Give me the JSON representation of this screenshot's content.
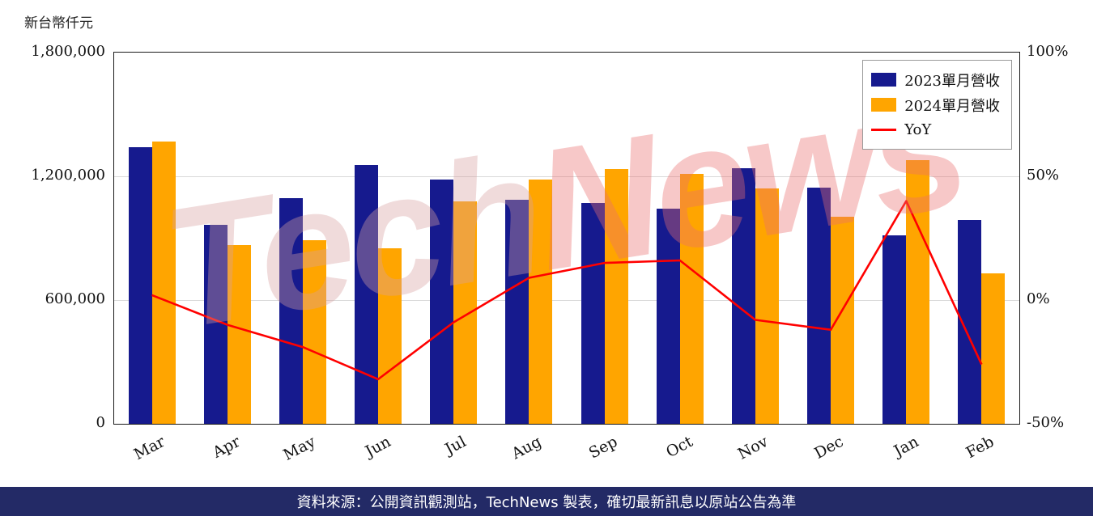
{
  "chart_data": {
    "type": "bar+line",
    "title": "",
    "categories": [
      "Mar",
      "Apr",
      "May",
      "Jun",
      "Jul",
      "Aug",
      "Sep",
      "Oct",
      "Nov",
      "Dec",
      "Jan",
      "Feb"
    ],
    "series": [
      {
        "name": "2023單月營收",
        "kind": "bar",
        "color": "#161a8e",
        "axis": "left",
        "values": [
          1340000,
          965000,
          1095000,
          1255000,
          1185000,
          1085000,
          1070000,
          1045000,
          1240000,
          1145000,
          915000,
          990000
        ]
      },
      {
        "name": "2024單月營收",
        "kind": "bar",
        "color": "#FFA500",
        "axis": "left",
        "values": [
          1370000,
          865000,
          890000,
          850000,
          1080000,
          1185000,
          1235000,
          1210000,
          1140000,
          1005000,
          1280000,
          730000
        ]
      },
      {
        "name": "YoY",
        "kind": "line",
        "color": "#FF0000",
        "axis": "right",
        "values": [
          2,
          -10,
          -19,
          -32,
          -9,
          9,
          15,
          16,
          -8,
          -12,
          40,
          -26
        ]
      }
    ],
    "left_axis": {
      "label": "新台幣仟元",
      "min": 0,
      "max": 1800000,
      "tick_values": [
        0,
        600000,
        1200000,
        1800000
      ],
      "tick_labels": [
        "0",
        "600,000",
        "1,200,000",
        "1,800,000"
      ]
    },
    "right_axis": {
      "min": -50,
      "max": 100,
      "tick_values": [
        -50,
        0,
        50,
        100
      ],
      "tick_labels": [
        "-50%",
        "0%",
        "50%",
        "100%"
      ]
    },
    "legend": {
      "position": "top-right",
      "entries": [
        "2023單月營收",
        "2024單月營收",
        "YoY"
      ]
    },
    "grid": "horizontal",
    "watermark_parts": [
      "Tech",
      "News"
    ]
  },
  "footer": {
    "text": "資料來源：公開資訊觀測站，TechNews 製表，確切最新訊息以原站公告為準"
  }
}
